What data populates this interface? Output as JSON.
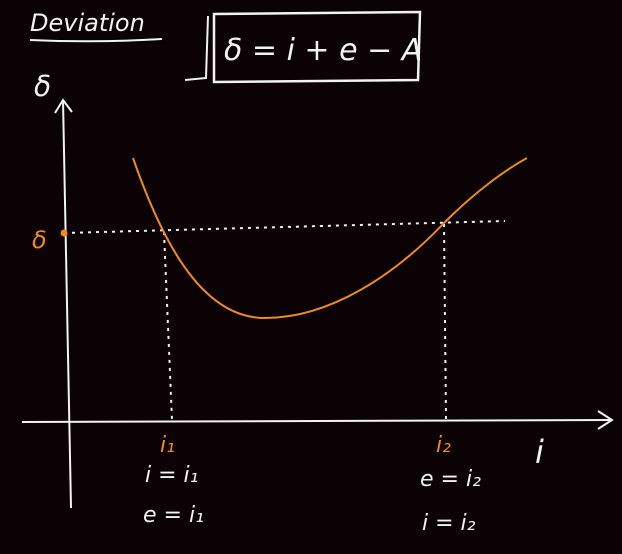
{
  "heading": "Deviation",
  "formula": "δ = i + e − A",
  "colors": {
    "background": "#0a0204",
    "ink": "#f2f2f2",
    "curve": "#f08a1c"
  },
  "axes": {
    "y_label": "δ",
    "x_label": "i"
  },
  "marks": {
    "delta_level": "δ",
    "i1": "i₁",
    "i2": "i₂"
  },
  "conditions": {
    "left": [
      "i = i₁",
      "e = i₁"
    ],
    "right": [
      "e = i₂",
      "i = i₂"
    ]
  }
}
